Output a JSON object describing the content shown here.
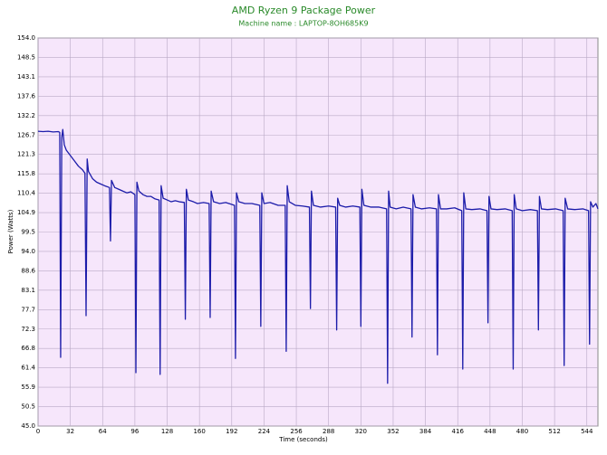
{
  "chart_data": {
    "type": "line",
    "title": "AMD Ryzen 9 Package Power",
    "subtitle": "Machine name : LAPTOP-8OH685K9",
    "xlabel": "Time (seconds)",
    "ylabel": "Power (Watts)",
    "color": "#1c1caa",
    "grid": true,
    "xlim": [
      0,
      555
    ],
    "ylim": [
      45,
      154
    ],
    "xticks": [
      0,
      32,
      64,
      96,
      128,
      160,
      192,
      224,
      256,
      288,
      320,
      352,
      384,
      416,
      448,
      480,
      512,
      544
    ],
    "yticks": [
      {
        "value": 45,
        "label": "45.0"
      },
      {
        "value": 50.45,
        "label": "50.5"
      },
      {
        "value": 55.9,
        "label": "55.9"
      },
      {
        "value": 61.35,
        "label": "61.4"
      },
      {
        "value": 66.8,
        "label": "66.8"
      },
      {
        "value": 72.25,
        "label": "72.3"
      },
      {
        "value": 77.7,
        "label": "77.7"
      },
      {
        "value": 83.15,
        "label": "83.1"
      },
      {
        "value": 88.6,
        "label": "88.6"
      },
      {
        "value": 94.05,
        "label": "94.0"
      },
      {
        "value": 99.5,
        "label": "99.5"
      },
      {
        "value": 104.95,
        "label": "104.9"
      },
      {
        "value": 110.4,
        "label": "110.4"
      },
      {
        "value": 115.85,
        "label": "115.8"
      },
      {
        "value": 121.3,
        "label": "121.3"
      },
      {
        "value": 126.75,
        "label": "126.7"
      },
      {
        "value": 132.2,
        "label": "132.2"
      },
      {
        "value": 137.65,
        "label": "137.6"
      },
      {
        "value": 143.1,
        "label": "143.1"
      },
      {
        "value": 148.55,
        "label": "148.5"
      },
      {
        "value": 154,
        "label": "154.0"
      }
    ],
    "x": [
      0,
      5,
      10,
      15,
      20,
      21.5,
      22.4,
      23.5,
      24.5,
      26,
      28,
      32,
      36,
      40,
      44,
      46.5,
      47.6,
      48.7,
      50,
      54,
      58,
      62,
      66,
      70.8,
      71.8,
      72.8,
      76,
      80,
      84,
      88,
      92,
      96,
      97,
      98,
      100,
      104,
      108,
      112,
      116,
      120,
      121,
      122,
      124,
      128,
      132,
      136,
      140,
      145,
      146,
      147,
      149,
      154,
      158,
      164,
      169.6,
      170.6,
      171.6,
      174,
      180,
      186,
      194.7,
      195.7,
      196.7,
      199,
      205,
      212,
      219.8,
      220.8,
      221.8,
      224,
      230,
      238,
      245,
      246,
      247,
      249,
      255,
      262,
      269,
      270,
      271,
      273,
      280,
      288,
      295,
      296,
      297,
      299,
      305,
      312,
      319,
      320,
      321,
      323,
      330,
      338,
      345.5,
      346.5,
      347.5,
      349,
      355,
      362,
      369.7,
      370.7,
      371.7,
      374,
      380,
      388,
      394.9,
      395.9,
      396.9,
      399,
      405,
      413,
      420,
      421,
      422,
      424,
      430,
      438,
      445,
      446,
      447,
      449,
      455,
      463,
      470,
      471,
      472,
      474,
      480,
      488,
      495,
      496,
      497,
      499,
      505,
      513,
      520.5,
      521.5,
      522.5,
      525,
      532,
      540,
      545.7,
      546.7,
      547.7,
      550,
      553,
      555
    ],
    "values": [
      127.8,
      127.7,
      127.8,
      127.6,
      127.7,
      127.5,
      64.3,
      126,
      128.3,
      124,
      122.5,
      121,
      119.5,
      118,
      117,
      116,
      76,
      120,
      116.5,
      114.5,
      113.5,
      113,
      112.5,
      112,
      97,
      114,
      112,
      111.5,
      111,
      110.5,
      110.8,
      110,
      60,
      113.5,
      111,
      110,
      109.5,
      109.5,
      108.8,
      108.5,
      59.5,
      112.5,
      109,
      108.5,
      108,
      108.3,
      108,
      107.8,
      75,
      111.5,
      108.5,
      108,
      107.5,
      107.8,
      107.5,
      75.5,
      111,
      108,
      107.5,
      107.8,
      107,
      64,
      110.5,
      108,
      107.5,
      107.5,
      107,
      73,
      110.5,
      107.5,
      107.8,
      107,
      107,
      66,
      112.5,
      108,
      107,
      106.8,
      106.5,
      78,
      111,
      107,
      106.5,
      106.8,
      106.5,
      72,
      109,
      107,
      106.5,
      106.8,
      106.5,
      73,
      111.5,
      107,
      106.5,
      106.5,
      106,
      57,
      111,
      106.5,
      106,
      106.5,
      106,
      70,
      110,
      106.5,
      106,
      106.3,
      106,
      65,
      110,
      106,
      106,
      106.3,
      105.5,
      61,
      110.5,
      106,
      105.8,
      106,
      105.5,
      74,
      109.5,
      106,
      105.8,
      106,
      105.5,
      61,
      110,
      106,
      105.5,
      105.8,
      105.5,
      72,
      109.5,
      106,
      105.8,
      106,
      105.5,
      62,
      109,
      106,
      105.8,
      106,
      105.5,
      68,
      108,
      106.5,
      107.5,
      106
    ]
  }
}
